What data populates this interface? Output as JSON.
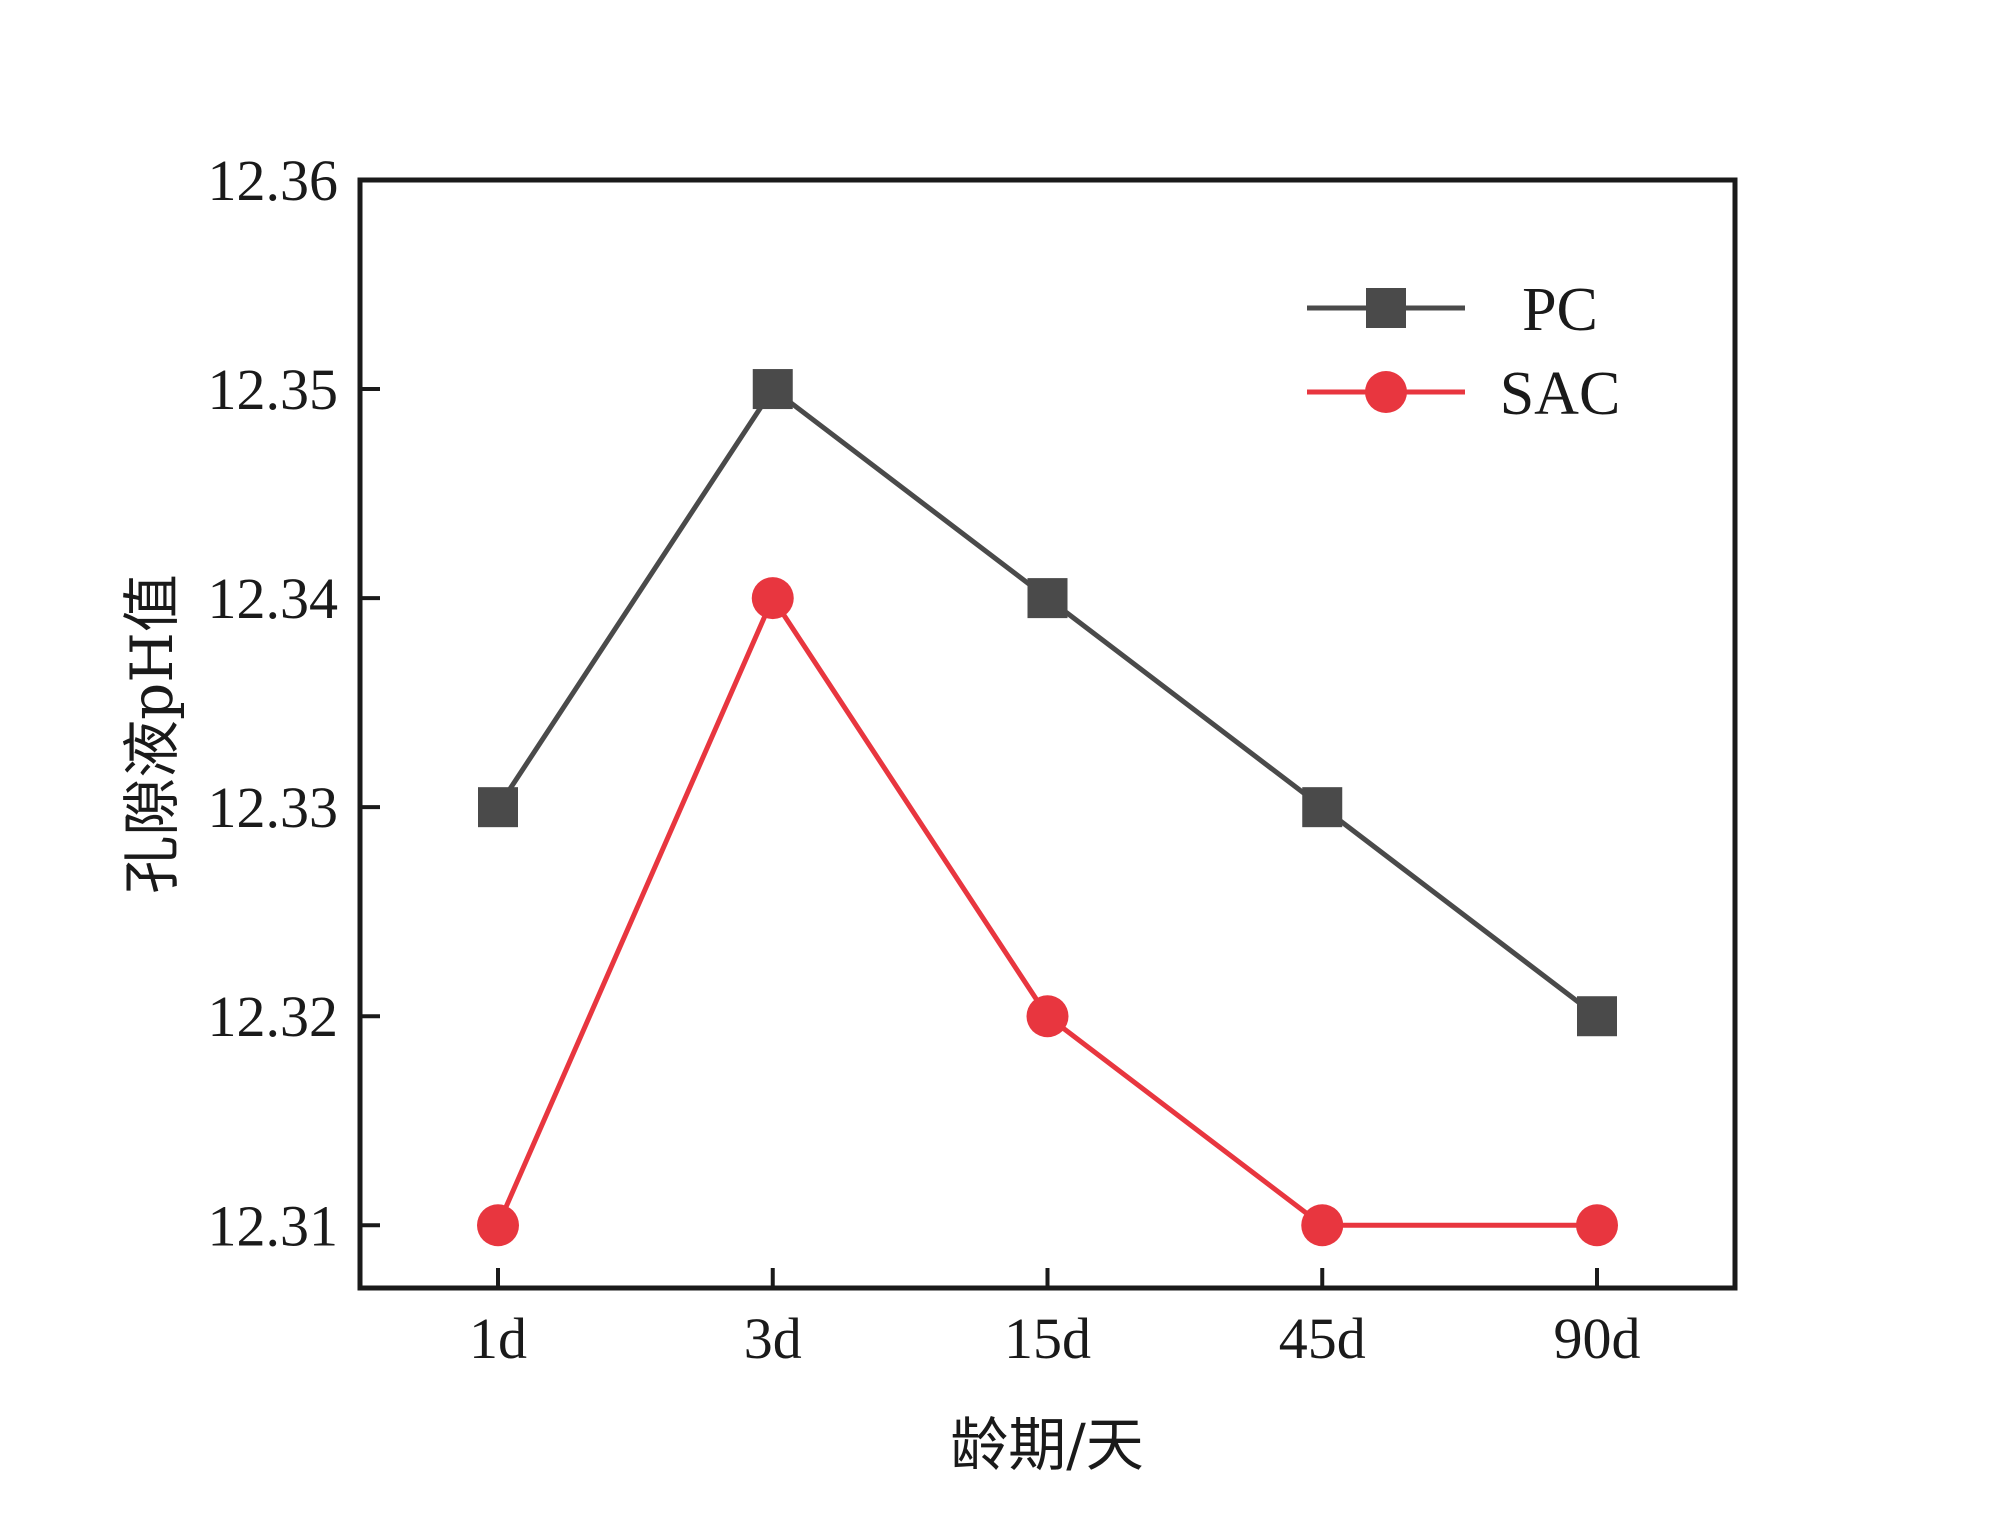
{
  "chart_data": {
    "type": "line",
    "title": "",
    "xlabel": "龄期/天",
    "ylabel": "孔隙液pH值",
    "categories": [
      "1d",
      "3d",
      "15d",
      "45d",
      "90d"
    ],
    "ylim": [
      12.307,
      12.36
    ],
    "yticks": [
      "12.31",
      "12.32",
      "12.33",
      "12.34",
      "12.35",
      "12.36"
    ],
    "grid": false,
    "legend_position": "top-right",
    "series": [
      {
        "name": "PC",
        "values": [
          12.33,
          12.35,
          12.34,
          12.33,
          12.32
        ],
        "color": "#4a4a4a",
        "marker": "square"
      },
      {
        "name": "SAC",
        "values": [
          12.31,
          12.34,
          12.32,
          12.31,
          12.31
        ],
        "color": "#e8363f",
        "marker": "circle"
      }
    ]
  }
}
